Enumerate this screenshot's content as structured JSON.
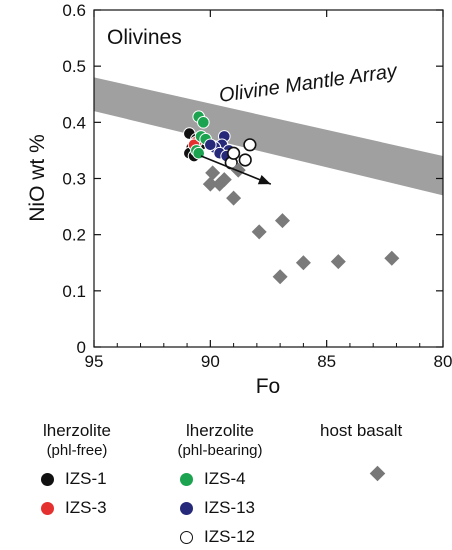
{
  "chart_data": {
    "type": "scatter",
    "title": "Olivines",
    "xlabel": "Fo",
    "ylabel": "NiO wt %",
    "xlim": [
      95,
      80
    ],
    "ylim": [
      0,
      0.6
    ],
    "x_reversed": true,
    "x_ticks": [
      "95",
      "90",
      "85",
      "80"
    ],
    "y_ticks": [
      "0",
      "0.1",
      "0.2",
      "0.3",
      "0.4",
      "0.5",
      "0.6"
    ],
    "band": {
      "label": "Olivine Mantle Array",
      "upper": [
        [
          95.0,
          0.48
        ],
        [
          80.0,
          0.34
        ]
      ],
      "lower": [
        [
          95.0,
          0.42
        ],
        [
          80.0,
          0.27
        ]
      ],
      "color": "#a0a0a0"
    },
    "arrow": {
      "from": [
        90.4,
        0.34
      ],
      "to": [
        87.4,
        0.29
      ]
    },
    "series": [
      {
        "name": "IZS-1",
        "marker": "circle",
        "fill": "#111111",
        "stroke": "#ffffff",
        "points": [
          [
            90.9,
            0.38
          ],
          [
            90.8,
            0.355
          ],
          [
            90.6,
            0.37
          ],
          [
            90.9,
            0.345
          ],
          [
            90.7,
            0.34
          ],
          [
            90.4,
            0.36
          ]
        ]
      },
      {
        "name": "IZS-3",
        "marker": "circle",
        "fill": "#e53030",
        "stroke": "#ffffff",
        "points": [
          [
            90.6,
            0.365
          ],
          [
            90.7,
            0.36
          ]
        ]
      },
      {
        "name": "IZS-4",
        "marker": "circle",
        "fill": "#1ba34f",
        "stroke": "#ffffff",
        "points": [
          [
            90.5,
            0.41
          ],
          [
            90.3,
            0.4
          ],
          [
            90.4,
            0.375
          ],
          [
            90.6,
            0.35
          ],
          [
            90.5,
            0.345
          ],
          [
            90.2,
            0.37
          ]
        ]
      },
      {
        "name": "IZS-13",
        "marker": "circle",
        "fill": "#26297a",
        "stroke": "#ffffff",
        "points": [
          [
            89.4,
            0.375
          ],
          [
            89.5,
            0.36
          ],
          [
            89.8,
            0.355
          ],
          [
            89.2,
            0.35
          ],
          [
            89.6,
            0.345
          ],
          [
            89.3,
            0.34
          ],
          [
            90.0,
            0.36
          ]
        ]
      },
      {
        "name": "IZS-12",
        "marker": "circle",
        "fill": "#ffffff",
        "stroke": "#111111",
        "points": [
          [
            88.3,
            0.36
          ],
          [
            88.5,
            0.333
          ],
          [
            89.1,
            0.328
          ],
          [
            89.0,
            0.345
          ]
        ]
      },
      {
        "name": "host basalt",
        "marker": "diamond",
        "fill": "#7a7a7a",
        "points": [
          [
            89.9,
            0.31
          ],
          [
            89.6,
            0.29
          ],
          [
            88.8,
            0.315
          ],
          [
            89.4,
            0.298
          ],
          [
            90.0,
            0.29
          ],
          [
            89.0,
            0.265
          ],
          [
            87.9,
            0.205
          ],
          [
            86.9,
            0.225
          ],
          [
            87.0,
            0.125
          ],
          [
            86.0,
            0.15
          ],
          [
            84.5,
            0.152
          ],
          [
            82.2,
            0.158
          ]
        ]
      }
    ]
  },
  "legend": {
    "group1_title": "lherzolite",
    "group1_sub": "(phl-free)",
    "group2_title": "lherzolite",
    "group2_sub": "(phl-bearing)",
    "group3_title": "host basalt",
    "items": {
      "izs1": "IZS-1",
      "izs3": "IZS-3",
      "izs4": "IZS-4",
      "izs13": "IZS-13",
      "izs12": "IZS-12"
    }
  }
}
